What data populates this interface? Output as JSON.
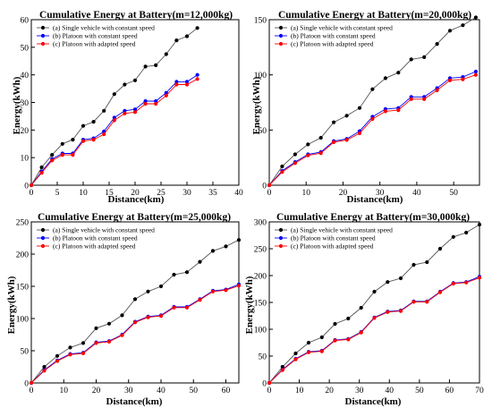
{
  "figure": {
    "charts": [
      {
        "title": "Cumulative Energy at Battery(m=12,000kg)",
        "xlabel": "Distance(km)",
        "ylabel": "Energy(kWh)"
      },
      {
        "title": "Cumulative Energy at Battery(m=20,000kg)",
        "xlabel": "Distance(km)",
        "ylabel": "Energy(kWh)"
      },
      {
        "title": "Cumulative Energy at Battery(m=25,000kg)",
        "xlabel": "Distance(km)",
        "ylabel": "Energy(kWh)"
      },
      {
        "title": "Cumulative Energy at Battery(m=30,000kg)",
        "xlabel": "Distance(km)",
        "ylabel": "Energy(kWh)"
      }
    ]
  },
  "chart_data": [
    {
      "type": "line",
      "title": "Cumulative Energy at Battery(m=12,000kg)",
      "xlabel": "Distance(km)",
      "ylabel": "Energy(kWh)",
      "xlim": [
        0,
        40
      ],
      "ylim": [
        0,
        60
      ],
      "xticks": [
        0,
        5,
        10,
        15,
        20,
        25,
        30,
        35,
        40
      ],
      "yticks": [
        0,
        10,
        20,
        30,
        40,
        50,
        60
      ],
      "legend_position": "top-left",
      "grid": false,
      "x": [
        0,
        2,
        4,
        6,
        8,
        10,
        12,
        14,
        16,
        18,
        20,
        22,
        24,
        26,
        28,
        30,
        32,
        34,
        36,
        38,
        40
      ],
      "series": [
        {
          "name": "(a)   Single vehicle with constant speed",
          "color": "#000000",
          "values": [
            0,
            6.5,
            11,
            15,
            16.5,
            21.5,
            23,
            27,
            33,
            36.5,
            38,
            43,
            43.5,
            47.5,
            52.5,
            54,
            57,
            null,
            null,
            null,
            null
          ]
        },
        {
          "name": "(b)   Platoon with constant speed",
          "color": "#0000ff",
          "values": [
            0,
            5,
            9.5,
            11.5,
            11.5,
            16.5,
            17,
            19.5,
            24.5,
            27,
            27.5,
            30.5,
            30.5,
            33.5,
            37.5,
            37.5,
            40,
            null,
            null,
            null,
            null
          ]
        },
        {
          "name": "(c)   Platoon with adapted speed",
          "color": "#ff0000",
          "values": [
            0,
            4.5,
            9,
            11,
            11,
            16,
            16.5,
            18.5,
            23.5,
            26,
            26.5,
            29.5,
            29.5,
            32.5,
            36.5,
            36.5,
            38.5,
            null,
            null,
            null,
            null
          ]
        }
      ]
    },
    {
      "type": "line",
      "title": "Cumulative Energy at Battery(m=20,000kg)",
      "xlabel": "Distance(km)",
      "ylabel": "Energy(kWh)",
      "xlim": [
        0,
        57
      ],
      "ylim": [
        0,
        150
      ],
      "xticks": [
        0,
        10,
        20,
        30,
        40,
        50
      ],
      "yticks": [
        0,
        50,
        100,
        150
      ],
      "legend_position": "top-left",
      "grid": false,
      "x": [
        0,
        3.5,
        7,
        10.5,
        14,
        17.5,
        21,
        24.5,
        28,
        31.5,
        35,
        38.5,
        42,
        45.5,
        49,
        52.5,
        56
      ],
      "series": [
        {
          "name": "(a)   Single vehicle with constant speed",
          "color": "#000000",
          "values": [
            0,
            17,
            28,
            37,
            43,
            57,
            63,
            70,
            87,
            97,
            102,
            114,
            116,
            128,
            140,
            145,
            152
          ]
        },
        {
          "name": "(b)   Platoon with constant speed",
          "color": "#0000ff",
          "values": [
            0,
            13,
            21,
            28,
            30,
            40,
            42,
            49,
            62,
            69,
            70,
            80,
            80,
            88,
            97,
            98,
            103
          ]
        },
        {
          "name": "(c)   Platoon with adapted speed",
          "color": "#ff0000",
          "values": [
            0,
            12,
            20,
            27,
            29,
            39,
            41,
            47,
            60,
            67,
            68,
            78,
            78,
            86,
            95,
            96,
            100
          ]
        }
      ]
    },
    {
      "type": "line",
      "title": "Cumulative Energy at Battery(m=25,000kg)",
      "xlabel": "Distance(km)",
      "ylabel": "Energy(kWh)",
      "xlim": [
        0,
        64
      ],
      "ylim": [
        0,
        250
      ],
      "xticks": [
        0,
        10,
        20,
        30,
        40,
        50,
        60
      ],
      "yticks": [
        0,
        50,
        100,
        150,
        200,
        250
      ],
      "legend_position": "top-left",
      "grid": false,
      "x": [
        0,
        4,
        8,
        12,
        16,
        20,
        24,
        28,
        32,
        36,
        40,
        44,
        48,
        52,
        56,
        60,
        64
      ],
      "series": [
        {
          "name": "(a)   Single vehicle with constant speed",
          "color": "#000000",
          "values": [
            0,
            25,
            42,
            55,
            62,
            85,
            92,
            105,
            130,
            142,
            150,
            168,
            172,
            188,
            205,
            212,
            222
          ]
        },
        {
          "name": "(b)   Platoon with constant speed",
          "color": "#0000ff",
          "values": [
            0,
            20,
            35,
            45,
            47,
            63,
            65,
            75,
            95,
            103,
            105,
            118,
            118,
            130,
            143,
            145,
            153
          ]
        },
        {
          "name": "(c)   Platoon with adapted speed",
          "color": "#ff0000",
          "values": [
            0,
            19,
            34,
            44,
            46,
            62,
            64,
            74,
            94,
            102,
            104,
            117,
            117,
            129,
            142,
            144,
            151
          ]
        }
      ]
    },
    {
      "type": "line",
      "title": "Cumulative Energy at Battery(m=30,000kg)",
      "xlabel": "Distance(km)",
      "ylabel": "Energy(kWh)",
      "xlim": [
        0,
        70
      ],
      "ylim": [
        0,
        300
      ],
      "xticks": [
        0,
        10,
        20,
        30,
        40,
        50,
        60,
        70
      ],
      "yticks": [
        0,
        50,
        100,
        150,
        200,
        250,
        300
      ],
      "legend_position": "top-left",
      "grid": false,
      "x": [
        0,
        4.4,
        8.8,
        13.1,
        17.5,
        21.9,
        26.3,
        30.6,
        35,
        39.4,
        43.8,
        48.1,
        52.5,
        56.9,
        61.3,
        65.6,
        70
      ],
      "series": [
        {
          "name": "(a)   Single vehicle with constant speed",
          "color": "#000000",
          "values": [
            0,
            30,
            55,
            75,
            85,
            110,
            120,
            140,
            170,
            188,
            195,
            220,
            225,
            250,
            272,
            280,
            295
          ]
        },
        {
          "name": "(b)   Platoon with constant speed",
          "color": "#0000ff",
          "values": [
            0,
            25,
            45,
            58,
            60,
            80,
            82,
            95,
            122,
            133,
            135,
            152,
            152,
            170,
            186,
            188,
            198
          ]
        },
        {
          "name": "(c)   Platoon with adapted speed",
          "color": "#ff0000",
          "values": [
            0,
            24,
            44,
            57,
            59,
            79,
            81,
            94,
            121,
            132,
            134,
            151,
            151,
            169,
            185,
            187,
            196
          ]
        }
      ]
    }
  ]
}
